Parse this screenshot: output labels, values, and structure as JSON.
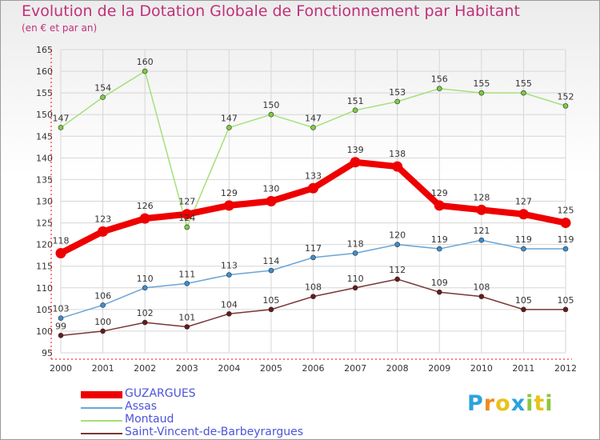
{
  "colors": {
    "title": "#c0307a",
    "legend_text": "#4b54d8",
    "axis": "#ff0000",
    "grid": "#d6d6d6"
  },
  "chart_data": {
    "type": "line",
    "title": "Evolution de la Dotation Globale de Fonctionnement par Habitant",
    "subtitle": "(en € et par an)",
    "xlabel": "",
    "ylabel": "",
    "ylim": [
      95,
      165
    ],
    "yticks": [
      95,
      100,
      105,
      110,
      115,
      120,
      125,
      130,
      135,
      140,
      145,
      150,
      155,
      160,
      165
    ],
    "categories": [
      "2000",
      "2001",
      "2002",
      "2003",
      "2004",
      "2005",
      "2006",
      "2007",
      "2008",
      "2009",
      "2010",
      "2011",
      "2012"
    ],
    "grid": true,
    "legend_position": "bottom-left",
    "series": [
      {
        "name": "GUZARGUES",
        "color": "#ee0000",
        "marker": "#ee0000",
        "emphasis": true,
        "values": [
          118,
          123,
          126,
          127,
          129,
          130,
          133,
          139,
          138,
          129,
          128,
          127,
          125
        ]
      },
      {
        "name": "Assas",
        "color": "#6aa5d8",
        "marker": "#3c8fd0",
        "emphasis": false,
        "values": [
          103,
          106,
          110,
          111,
          113,
          114,
          117,
          118,
          120,
          119,
          121,
          119,
          119
        ]
      },
      {
        "name": "Montaud",
        "color": "#a5e07a",
        "marker": "#7ccf3e",
        "emphasis": false,
        "values": [
          147,
          154,
          160,
          124,
          147,
          150,
          147,
          151,
          153,
          156,
          155,
          155,
          152
        ]
      },
      {
        "name": "Saint-Vincent-de-Barbeyrargues",
        "color": "#7a3636",
        "marker": "#6a1a1a",
        "emphasis": false,
        "values": [
          99,
          100,
          102,
          101,
          104,
          105,
          108,
          110,
          112,
          109,
          108,
          105,
          105
        ]
      }
    ]
  },
  "logo": {
    "letters": [
      "P",
      "r",
      "o",
      "x",
      "i",
      "t",
      "i"
    ],
    "colors": [
      "#2aa3de",
      "#f08a1c",
      "#e8c21c",
      "#2aa3de",
      "#8cc63e",
      "#e8c21c",
      "#8cc63e"
    ]
  }
}
